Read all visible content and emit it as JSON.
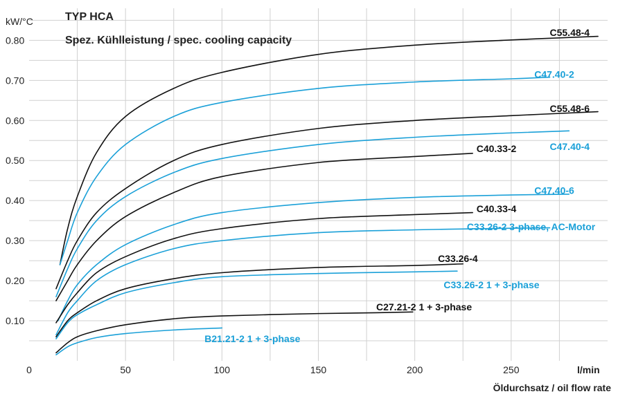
{
  "chart_data": {
    "type": "line",
    "title": "TYP HCA",
    "subtitle": "Spez. Kühlleistung / spec. cooling capacity",
    "ylabel": "kW/°C",
    "xlabel": "Öldurchsatz / oil flow rate",
    "x_unit": "l/min",
    "xlim": [
      0,
      300
    ],
    "ylim": [
      0,
      0.88
    ],
    "x_ticks": [
      0,
      50,
      100,
      150,
      200,
      250
    ],
    "y_ticks": [
      "0.10",
      "0.20",
      "0.30",
      "0.40",
      "0.50",
      "0.60",
      "0.70",
      "0.80"
    ],
    "grid": true,
    "colors": {
      "black_series": "#111111",
      "blue_series": "#1aa0d8",
      "grid": "#d0d0d0"
    },
    "series": [
      {
        "name": "C55.48-4",
        "color": "black",
        "points": [
          [
            16,
            0.24
          ],
          [
            20,
            0.33
          ],
          [
            25,
            0.41
          ],
          [
            35,
            0.52
          ],
          [
            50,
            0.61
          ],
          [
            75,
            0.68
          ],
          [
            100,
            0.72
          ],
          [
            150,
            0.765
          ],
          [
            200,
            0.788
          ],
          [
            250,
            0.801
          ],
          [
            295,
            0.81
          ]
        ]
      },
      {
        "name": "C47.40-2",
        "color": "blue",
        "points": [
          [
            16,
            0.24
          ],
          [
            20,
            0.3
          ],
          [
            25,
            0.37
          ],
          [
            35,
            0.46
          ],
          [
            50,
            0.54
          ],
          [
            75,
            0.61
          ],
          [
            100,
            0.645
          ],
          [
            150,
            0.68
          ],
          [
            200,
            0.696
          ],
          [
            250,
            0.704
          ],
          [
            270,
            0.708
          ]
        ]
      },
      {
        "name": "C55.48-6",
        "color": "black",
        "points": [
          [
            14,
            0.18
          ],
          [
            20,
            0.25
          ],
          [
            25,
            0.3
          ],
          [
            35,
            0.37
          ],
          [
            50,
            0.43
          ],
          [
            75,
            0.5
          ],
          [
            100,
            0.54
          ],
          [
            150,
            0.58
          ],
          [
            200,
            0.6
          ],
          [
            250,
            0.612
          ],
          [
            295,
            0.622
          ]
        ]
      },
      {
        "name": "C47.40-4",
        "color": "blue",
        "points": [
          [
            14,
            0.16
          ],
          [
            20,
            0.23
          ],
          [
            25,
            0.28
          ],
          [
            35,
            0.35
          ],
          [
            50,
            0.41
          ],
          [
            75,
            0.47
          ],
          [
            100,
            0.505
          ],
          [
            150,
            0.54
          ],
          [
            200,
            0.558
          ],
          [
            250,
            0.569
          ],
          [
            280,
            0.574
          ]
        ]
      },
      {
        "name": "C40.33-2",
        "color": "black",
        "points": [
          [
            14,
            0.15
          ],
          [
            20,
            0.2
          ],
          [
            25,
            0.24
          ],
          [
            35,
            0.3
          ],
          [
            50,
            0.36
          ],
          [
            75,
            0.42
          ],
          [
            100,
            0.46
          ],
          [
            150,
            0.495
          ],
          [
            200,
            0.51
          ],
          [
            230,
            0.518
          ]
        ]
      },
      {
        "name": "C47.40-6",
        "color": "blue",
        "points": [
          [
            15,
            0.1
          ],
          [
            20,
            0.15
          ],
          [
            25,
            0.19
          ],
          [
            35,
            0.24
          ],
          [
            50,
            0.29
          ],
          [
            75,
            0.34
          ],
          [
            100,
            0.37
          ],
          [
            150,
            0.395
          ],
          [
            200,
            0.408
          ],
          [
            250,
            0.414
          ],
          [
            280,
            0.416
          ]
        ]
      },
      {
        "name": "C40.33-4",
        "color": "black",
        "points": [
          [
            14,
            0.095
          ],
          [
            20,
            0.14
          ],
          [
            25,
            0.17
          ],
          [
            35,
            0.22
          ],
          [
            50,
            0.26
          ],
          [
            75,
            0.305
          ],
          [
            100,
            0.33
          ],
          [
            150,
            0.355
          ],
          [
            200,
            0.365
          ],
          [
            230,
            0.37
          ]
        ]
      },
      {
        "name": "C33.26-2 3-phase, AC-Motor",
        "color": "blue",
        "points": [
          [
            14,
            0.065
          ],
          [
            20,
            0.12
          ],
          [
            25,
            0.15
          ],
          [
            35,
            0.2
          ],
          [
            50,
            0.24
          ],
          [
            75,
            0.28
          ],
          [
            100,
            0.3
          ],
          [
            150,
            0.32
          ],
          [
            200,
            0.327
          ],
          [
            250,
            0.331
          ],
          [
            270,
            0.332
          ]
        ]
      },
      {
        "name": "C33.26-4",
        "color": "black",
        "points": [
          [
            14,
            0.06
          ],
          [
            20,
            0.1
          ],
          [
            25,
            0.12
          ],
          [
            35,
            0.15
          ],
          [
            50,
            0.18
          ],
          [
            75,
            0.205
          ],
          [
            100,
            0.22
          ],
          [
            150,
            0.233
          ],
          [
            200,
            0.238
          ],
          [
            225,
            0.242
          ]
        ]
      },
      {
        "name": "C33.26-2 1 + 3-phase",
        "color": "blue",
        "points": [
          [
            14,
            0.055
          ],
          [
            20,
            0.095
          ],
          [
            25,
            0.115
          ],
          [
            35,
            0.14
          ],
          [
            50,
            0.17
          ],
          [
            75,
            0.195
          ],
          [
            100,
            0.21
          ],
          [
            150,
            0.218
          ],
          [
            200,
            0.222
          ],
          [
            222,
            0.224
          ]
        ]
      },
      {
        "name": "C27.21-2 1 + 3-phase",
        "color": "black",
        "points": [
          [
            14,
            0.02
          ],
          [
            20,
            0.045
          ],
          [
            25,
            0.06
          ],
          [
            35,
            0.075
          ],
          [
            50,
            0.09
          ],
          [
            75,
            0.105
          ],
          [
            100,
            0.112
          ],
          [
            150,
            0.118
          ],
          [
            180,
            0.12
          ],
          [
            199,
            0.122
          ]
        ]
      },
      {
        "name": "B21.21-2 1 + 3-phase",
        "color": "blue",
        "points": [
          [
            14,
            0.015
          ],
          [
            20,
            0.035
          ],
          [
            25,
            0.045
          ],
          [
            35,
            0.058
          ],
          [
            50,
            0.068
          ],
          [
            75,
            0.077
          ],
          [
            100,
            0.082
          ]
        ]
      }
    ],
    "series_labels": [
      {
        "text": "C55.48-4",
        "color": "black",
        "x": 270,
        "y": 0.82
      },
      {
        "text": "C47.40-2",
        "color": "blue",
        "x": 262,
        "y": 0.715
      },
      {
        "text": "C55.48-6",
        "color": "black",
        "x": 270,
        "y": 0.63
      },
      {
        "text": "C47.40-4",
        "color": "blue",
        "x": 270,
        "y": 0.535
      },
      {
        "text": "C40.33-2",
        "color": "black",
        "x": 232,
        "y": 0.53
      },
      {
        "text": "C47.40-6",
        "color": "blue",
        "x": 262,
        "y": 0.425
      },
      {
        "text": "C40.33-4",
        "color": "black",
        "x": 232,
        "y": 0.38
      },
      {
        "text": "C33.26-2 3-phase, AC-Motor",
        "color": "blue",
        "x": 227,
        "y": 0.335
      },
      {
        "text": "C33.26-4",
        "color": "black",
        "x": 212,
        "y": 0.255
      },
      {
        "text": "C33.26-2 1 + 3-phase",
        "color": "blue",
        "x": 215,
        "y": 0.19
      },
      {
        "text": "C27.21-2 1 + 3-phase",
        "color": "black",
        "x": 180,
        "y": 0.135
      },
      {
        "text": "B21.21-2 1 + 3-phase",
        "color": "blue",
        "x": 91,
        "y": 0.055
      }
    ]
  }
}
